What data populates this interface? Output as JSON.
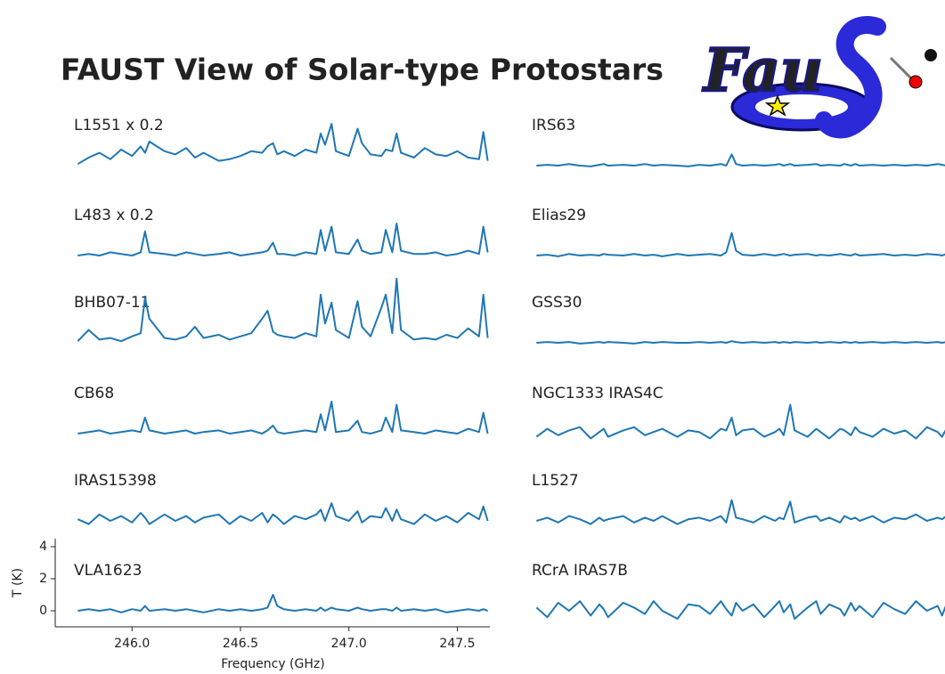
{
  "chart_data": {
    "type": "line",
    "title": "FAUST View of Solar-type Protostars",
    "logo": "Fau",
    "xlabel": "Frequency (GHz)",
    "ylabel": "T (K)",
    "xlim": [
      245.65,
      247.65
    ],
    "xticks": [
      {
        "value": 246,
        "label": "246.0"
      },
      246.5,
      {
        "value": 247,
        "label": "247.0"
      },
      247.5
    ],
    "ylim": [
      -1,
      4.5
    ],
    "yticks": [
      0,
      2,
      4
    ],
    "color": "#1f77b4",
    "x": [
      245.75,
      245.8,
      245.85,
      245.9,
      245.95,
      246.0,
      246.04,
      246.06,
      246.08,
      246.15,
      246.2,
      246.25,
      246.29,
      246.33,
      246.4,
      246.45,
      246.5,
      246.55,
      246.6,
      246.625,
      246.65,
      246.67,
      246.7,
      246.75,
      246.8,
      246.85,
      246.87,
      246.89,
      246.92,
      246.94,
      247.0,
      247.04,
      247.06,
      247.1,
      247.15,
      247.17,
      247.2,
      247.22,
      247.24,
      247.3,
      247.35,
      247.4,
      247.45,
      247.5,
      247.55,
      247.6,
      247.62,
      247.64
    ],
    "series": [
      {
        "name": "L1551 x 0.2",
        "values": [
          0.1,
          0.5,
          0.8,
          0.4,
          1.0,
          0.6,
          1.2,
          0.8,
          1.5,
          0.9,
          0.7,
          1.1,
          0.5,
          0.8,
          0.3,
          0.4,
          0.6,
          0.9,
          0.8,
          1.2,
          1.4,
          0.7,
          0.9,
          0.6,
          1.0,
          0.8,
          2.0,
          1.3,
          2.6,
          0.9,
          0.6,
          2.3,
          1.4,
          0.7,
          0.6,
          1.0,
          0.9,
          2.0,
          0.8,
          0.5,
          1.1,
          0.7,
          0.6,
          0.9,
          0.5,
          0.4,
          2.1,
          0.3
        ]
      },
      {
        "name": "L483 x 0.2",
        "values": [
          0,
          0.1,
          0,
          0.2,
          0.1,
          0,
          0.2,
          1.5,
          0.2,
          0.1,
          0,
          0.2,
          0.1,
          0,
          0.1,
          0.2,
          0,
          0.1,
          0.2,
          0.3,
          0.8,
          0.1,
          0.1,
          0,
          0.2,
          0.1,
          1.6,
          0.3,
          1.8,
          0.2,
          0.1,
          1.0,
          0.3,
          0.1,
          0.2,
          1.6,
          0.2,
          2.0,
          0.3,
          0.1,
          0.1,
          0.2,
          0,
          0.1,
          0.3,
          0.1,
          1.8,
          0.2
        ]
      },
      {
        "name": "BHB07-11",
        "values": [
          0.1,
          0.8,
          0.2,
          0.3,
          0.1,
          0.4,
          0.6,
          2.8,
          1.5,
          0.3,
          0.2,
          0.4,
          1.0,
          0.3,
          0.5,
          0.2,
          0.4,
          0.6,
          1.5,
          2.0,
          0.7,
          0.5,
          0.4,
          0.3,
          0.6,
          0.4,
          3.0,
          1.2,
          2.5,
          0.8,
          0.3,
          2.6,
          1.0,
          0.4,
          2.2,
          3.0,
          0.6,
          4.0,
          0.8,
          0.2,
          0.3,
          0.2,
          0.5,
          0.3,
          0.9,
          0.4,
          3.0,
          0.3
        ]
      },
      {
        "name": "CB68",
        "values": [
          0,
          0.1,
          0.2,
          0,
          0.1,
          0.2,
          0.1,
          1.0,
          0.2,
          0,
          0.1,
          0.2,
          0,
          0.1,
          0.2,
          0,
          0.1,
          0.2,
          0,
          0.2,
          0.5,
          0.1,
          0,
          0.1,
          0.2,
          0.1,
          1.2,
          0.2,
          2.0,
          0.1,
          0.2,
          0.8,
          0.1,
          0,
          0.2,
          1.0,
          0.1,
          1.8,
          0.2,
          0.1,
          0,
          0.2,
          0.1,
          0,
          0.3,
          0.1,
          1.3,
          0
        ]
      },
      {
        "name": "IRAS15398",
        "values": [
          0.1,
          -0.2,
          0.4,
          0,
          0.3,
          -0.1,
          0.5,
          0.2,
          -0.2,
          0.4,
          0,
          0.3,
          -0.1,
          0.2,
          0.4,
          -0.2,
          0.3,
          0,
          0.5,
          -0.1,
          0.4,
          0.2,
          -0.2,
          0.3,
          0.1,
          0.4,
          0.7,
          0,
          1.1,
          0.3,
          0,
          0.6,
          -0.1,
          0.3,
          0.2,
          0.8,
          0,
          0.7,
          0.1,
          -0.2,
          0.4,
          0,
          0.3,
          -0.1,
          0.5,
          0.1,
          0.9,
          0
        ]
      },
      {
        "name": "VLA1623",
        "values": [
          0,
          0.1,
          0,
          0.1,
          -0.1,
          0.1,
          0,
          0.3,
          0,
          0.1,
          0,
          0.1,
          0,
          -0.1,
          0.1,
          0,
          0.1,
          0,
          0.1,
          0.2,
          1.0,
          0.3,
          0.1,
          0,
          0.1,
          0,
          0.2,
          0,
          0.2,
          0.1,
          0,
          0.2,
          0.1,
          0,
          0.1,
          0.1,
          0,
          0.2,
          0,
          0.1,
          0,
          0.1,
          -0.1,
          0,
          0.1,
          0,
          0.1,
          0
        ]
      },
      {
        "name": "IRS63",
        "values": [
          0,
          0.05,
          0,
          0.1,
          0,
          -0.05,
          0.05,
          0.1,
          0,
          0.05,
          0,
          0.1,
          0,
          0.05,
          0,
          -0.05,
          0.05,
          0,
          0.1,
          0,
          0.7,
          0.1,
          0,
          0.05,
          0,
          0.05,
          0.1,
          0,
          0.1,
          0,
          0.05,
          0.1,
          0,
          0.05,
          0,
          0.1,
          0,
          0.1,
          0,
          0.05,
          0,
          0.05,
          0,
          0.05,
          0,
          0.1,
          0.05,
          0
        ]
      },
      {
        "name": "Elias29",
        "values": [
          0,
          0.05,
          -0.05,
          0.1,
          0,
          0.05,
          0,
          0.1,
          0.05,
          0,
          0.1,
          0,
          0.05,
          -0.05,
          0.1,
          0,
          0.05,
          0.1,
          0,
          0.2,
          1.4,
          0.3,
          0.05,
          0,
          0.1,
          0,
          0.05,
          0.1,
          0,
          0.05,
          0.1,
          0,
          0.05,
          0,
          0.1,
          0.05,
          0,
          0.1,
          0,
          0.05,
          0.1,
          0,
          0.05,
          0,
          0.1,
          0.05,
          0,
          0.1
        ]
      },
      {
        "name": "GSS30",
        "values": [
          0,
          0.05,
          0,
          0.05,
          -0.05,
          0,
          0.05,
          0,
          0.05,
          0,
          -0.05,
          0.05,
          0,
          0.05,
          0,
          0,
          0.05,
          0,
          0.05,
          0,
          0.1,
          0.05,
          0,
          0.05,
          0,
          0.05,
          0,
          0.05,
          0,
          0.05,
          0,
          0.05,
          0,
          0.05,
          0,
          0.05,
          0,
          0.05,
          0,
          0.05,
          0,
          0.05,
          0,
          0.05,
          0,
          0.05,
          0,
          0.05
        ]
      },
      {
        "name": "NGC1333 IRAS4C",
        "values": [
          -0.2,
          0.3,
          -0.1,
          0.2,
          0.4,
          -0.3,
          0.1,
          0.3,
          -0.2,
          0.2,
          0.4,
          -0.1,
          0.1,
          0.3,
          -0.2,
          0.2,
          0.1,
          -0.3,
          0.3,
          0.2,
          1.0,
          -0.1,
          0.2,
          0.3,
          -0.2,
          0.1,
          0.3,
          -0.1,
          1.8,
          0.2,
          -0.2,
          0.3,
          0.1,
          -0.3,
          0.3,
          0.2,
          -0.1,
          0.4,
          0.1,
          -0.2,
          0.3,
          0,
          0.2,
          -0.3,
          0.4,
          0.1,
          -0.2,
          0.3
        ]
      },
      {
        "name": "L1527",
        "values": [
          0,
          0.2,
          -0.1,
          0.3,
          0.1,
          -0.2,
          0.2,
          0,
          0.1,
          0.3,
          -0.1,
          0.2,
          0,
          0.3,
          -0.2,
          0.1,
          0.2,
          0,
          0.3,
          -0.1,
          1.3,
          0.2,
          0.1,
          -0.1,
          0.3,
          0,
          0.2,
          0.1,
          1.2,
          -0.1,
          0.2,
          0.3,
          0,
          0.2,
          -0.1,
          0.3,
          0.1,
          0.2,
          0,
          0.3,
          -0.1,
          0.2,
          0.1,
          0.4,
          0,
          0.2,
          0.1,
          0.3
        ]
      },
      {
        "name": "RCrA IRAS7B",
        "values": [
          0.2,
          -0.4,
          0.5,
          0,
          0.6,
          -0.3,
          0.4,
          0.1,
          -0.4,
          0.5,
          0.2,
          -0.2,
          0.6,
          0,
          -0.5,
          0.4,
          0.3,
          -0.2,
          0.6,
          0.1,
          -0.3,
          0.5,
          0,
          0.4,
          -0.4,
          0.3,
          0.6,
          -0.1,
          0.4,
          -0.5,
          0.2,
          0.6,
          -0.2,
          0.4,
          0.1,
          -0.3,
          0.5,
          0,
          0.3,
          -0.4,
          0.5,
          0.1,
          -0.2,
          0.6,
          0,
          0.3,
          -0.3,
          0.4
        ]
      }
    ]
  }
}
